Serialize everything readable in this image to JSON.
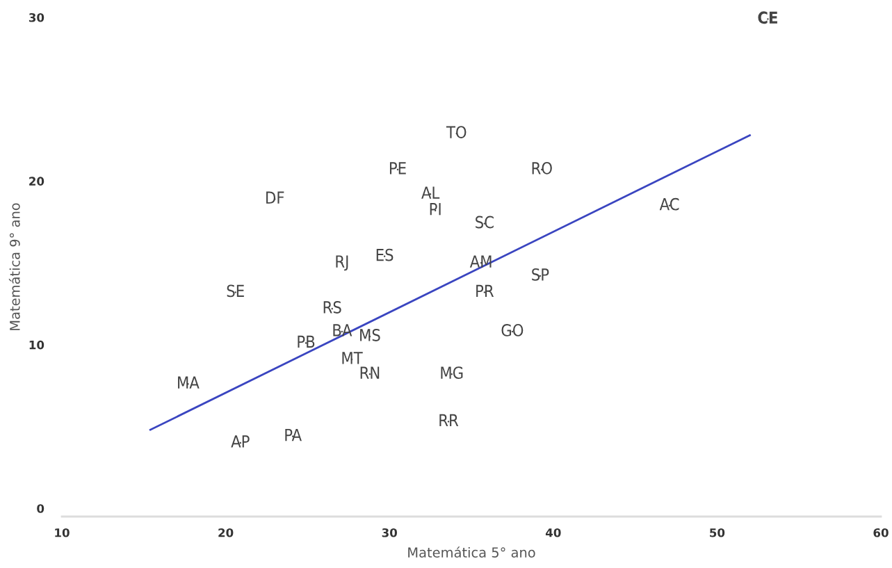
{
  "chart_data": {
    "type": "scatter",
    "xlabel": "Matemática 5° ano",
    "ylabel": "Matemática 9° ano",
    "xlim": [
      10,
      60
    ],
    "xticks": [
      10,
      20,
      30,
      40,
      50,
      60
    ],
    "ylim": [
      -0.5,
      30
    ],
    "yticks": [
      0,
      10,
      20,
      30
    ],
    "grid": false,
    "legend": false,
    "series": [
      {
        "color": "#444444",
        "x": [
          53.1,
          34.1,
          30.5,
          39.3,
          32.5,
          32.8,
          23.0,
          47.1,
          35.8,
          29.7,
          27.1,
          35.6,
          39.2,
          20.6,
          35.8,
          26.5,
          27.1,
          37.5,
          28.8,
          24.9,
          27.7,
          28.8,
          33.8,
          17.7,
          33.6,
          24.1,
          20.9
        ],
        "values": [
          29.9,
          22.9,
          20.7,
          20.7,
          19.2,
          18.2,
          18.9,
          18.5,
          17.4,
          15.4,
          15.0,
          15.0,
          14.2,
          13.2,
          13.2,
          12.2,
          10.8,
          10.8,
          10.5,
          10.1,
          9.1,
          8.2,
          8.2,
          7.6,
          5.3,
          4.4,
          4.0
        ],
        "value_labels": [
          "CE",
          "TO",
          "PE",
          "RO",
          "AL",
          "PI",
          "DF",
          "AC",
          "SC",
          "ES",
          "RJ",
          "AM",
          "SP",
          "SE",
          "PR",
          "RS",
          "BA",
          "GO",
          "MS",
          "PB",
          "MT",
          "RN",
          "MG",
          "MA",
          "RR",
          "PA",
          "AP"
        ]
      },
      {
        "type": "line",
        "color": "#3a45c0",
        "x": [
          15.4,
          52.0
        ],
        "values": [
          4.8,
          22.8
        ]
      }
    ]
  }
}
